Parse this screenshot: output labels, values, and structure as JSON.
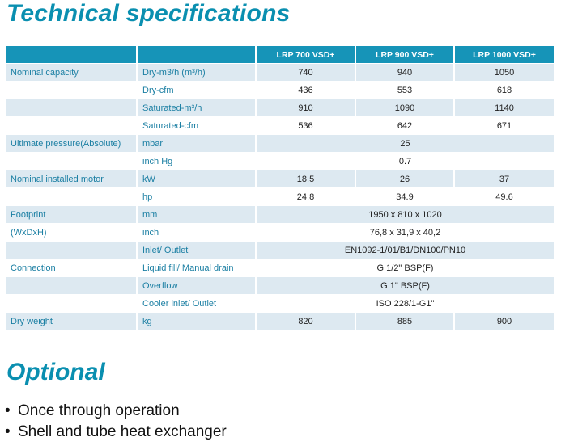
{
  "title": "Technical specifications",
  "header": {
    "cols": [
      "LRP 700 VSD+",
      "LRP 900 VSD+",
      "LRP 1000 VSD+"
    ]
  },
  "rows": [
    {
      "label": "Nominal capacity",
      "unit": "Dry-m3/h (m³/h)",
      "v": [
        "740",
        "940",
        "1050"
      ]
    },
    {
      "label": "",
      "unit": "Dry-cfm",
      "v": [
        "436",
        "553",
        "618"
      ]
    },
    {
      "label": "",
      "unit": " Saturated-m³/h",
      "v": [
        "910",
        "1090",
        "1140"
      ]
    },
    {
      "label": "",
      "unit": " Saturated-cfm",
      "v": [
        "536",
        "642",
        "671"
      ]
    },
    {
      "label": "Ultimate pressure(Absolute)",
      "unit": "mbar",
      "span": "25"
    },
    {
      "label": "",
      "unit": "inch Hg",
      "span": "0.7"
    },
    {
      "label": "Nominal installed motor",
      "unit": "kW",
      "v": [
        "18.5",
        "26",
        "37"
      ]
    },
    {
      "label": "",
      "unit": "hp",
      "v": [
        "24.8",
        "34.9",
        "49.6"
      ]
    },
    {
      "label": "Footprint",
      "unit": "mm",
      "span": "1950 x 810 x 1020"
    },
    {
      "label": "(WxDxH)",
      "unit": "inch",
      "span": "76,8 x 31,9 x 40,2"
    },
    {
      "label": "",
      "unit": " Inlet/ Outlet",
      "span": "EN1092-1/01/B1/DN100/PN10"
    },
    {
      "label": "Connection",
      "unit": "Liquid fill/ Manual drain",
      "span": "G 1/2\" BSP(F)"
    },
    {
      "label": "",
      "unit": "Overflow",
      "span": "G 1\" BSP(F)"
    },
    {
      "label": "",
      "unit": "Cooler inlet/ Outlet",
      "span": "ISO 228/1-G1\""
    },
    {
      "label": "Dry weight",
      "unit": "kg",
      "v": [
        "820",
        "885",
        "900"
      ]
    }
  ],
  "optional": {
    "title": "Optional",
    "bullet": "•",
    "items": [
      "Once through operation",
      "Shell and tube heat exchanger"
    ]
  }
}
